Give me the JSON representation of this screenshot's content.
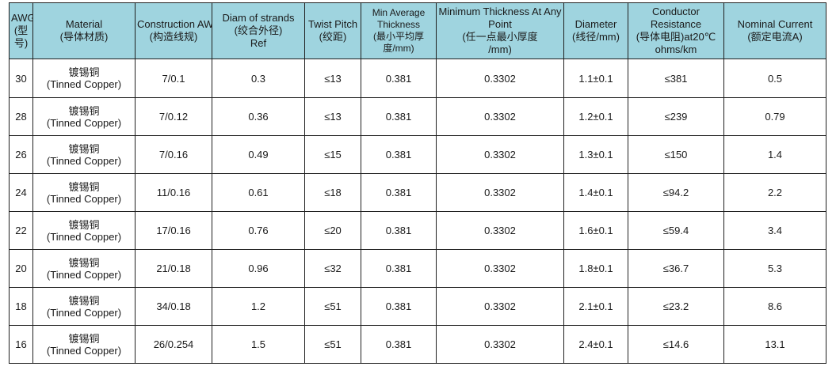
{
  "table": {
    "headers": [
      {
        "line1": "AWG",
        "line2": "(型号)",
        "line3": ""
      },
      {
        "line1": "Material",
        "line2": "(导体材质)",
        "line3": ""
      },
      {
        "line1": "Construction AWG",
        "line2": "(构造线规)",
        "line3": ""
      },
      {
        "line1": "Diam of strands",
        "line2": "(绞合外径)",
        "line3": "Ref"
      },
      {
        "line1": "Twist Pitch",
        "line2": "(绞距)",
        "line3": ""
      },
      {
        "line1": "Min Average Thickness",
        "line2": "(最小平均厚",
        "line3": "度/mm)"
      },
      {
        "line1": "Minimum Thickness At Any Point",
        "line2": "(任一点最小厚度",
        "line3": "/mm)"
      },
      {
        "line1": "Diameter",
        "line2": "(线径/mm)",
        "line3": ""
      },
      {
        "line1": "Conductor Resistance",
        "line2": "(导体电阻)at20℃",
        "line3": "ohms/km"
      },
      {
        "line1": "Nominal Current",
        "line2": "(额定电流A)",
        "line3": ""
      }
    ],
    "rows": [
      {
        "awg": "30",
        "material_cn": "镀锡铜",
        "material_en": "(Tinned Copper)",
        "construction": "7/0.1",
        "diam": "0.3",
        "pitch": "≤13",
        "min_avg": "0.381",
        "min_any": "0.3302",
        "diameter": "1.1±0.1",
        "resistance": "≤381",
        "current": "0.5"
      },
      {
        "awg": "28",
        "material_cn": "镀锡铜",
        "material_en": "(Tinned Copper)",
        "construction": "7/0.12",
        "diam": "0.36",
        "pitch": "≤13",
        "min_avg": "0.381",
        "min_any": "0.3302",
        "diameter": "1.2±0.1",
        "resistance": "≤239",
        "current": "0.79"
      },
      {
        "awg": "26",
        "material_cn": "镀锡铜",
        "material_en": "(Tinned Copper)",
        "construction": "7/0.16",
        "diam": "0.49",
        "pitch": "≤15",
        "min_avg": "0.381",
        "min_any": "0.3302",
        "diameter": "1.3±0.1",
        "resistance": "≤150",
        "current": "1.4"
      },
      {
        "awg": "24",
        "material_cn": "镀锡铜",
        "material_en": "(Tinned Copper)",
        "construction": "11/0.16",
        "diam": "0.61",
        "pitch": "≤18",
        "min_avg": "0.381",
        "min_any": "0.3302",
        "diameter": "1.4±0.1",
        "resistance": "≤94.2",
        "current": "2.2"
      },
      {
        "awg": "22",
        "material_cn": "镀锡铜",
        "material_en": "(Tinned Copper)",
        "construction": "17/0.16",
        "diam": "0.76",
        "pitch": "≤20",
        "min_avg": "0.381",
        "min_any": "0.3302",
        "diameter": "1.6±0.1",
        "resistance": "≤59.4",
        "current": "3.4"
      },
      {
        "awg": "20",
        "material_cn": "镀锡铜",
        "material_en": "(Tinned Copper)",
        "construction": "21/0.18",
        "diam": "0.96",
        "pitch": "≤32",
        "min_avg": "0.381",
        "min_any": "0.3302",
        "diameter": "1.8±0.1",
        "resistance": "≤36.7",
        "current": "5.3"
      },
      {
        "awg": "18",
        "material_cn": "镀锡铜",
        "material_en": "(Tinned Copper)",
        "construction": "34/0.18",
        "diam": "1.2",
        "pitch": "≤51",
        "min_avg": "0.381",
        "min_any": "0.3302",
        "diameter": "2.1±0.1",
        "resistance": "≤23.2",
        "current": "8.6"
      },
      {
        "awg": "16",
        "material_cn": "镀锡铜",
        "material_en": "(Tinned Copper)",
        "construction": "26/0.254",
        "diam": "1.5",
        "pitch": "≤51",
        "min_avg": "0.381",
        "min_any": "0.3302",
        "diameter": "2.4±0.1",
        "resistance": "≤14.6",
        "current": "13.1"
      }
    ]
  },
  "colors": {
    "header_background": "#9fd4df",
    "border": "#1f1f1f",
    "body_background": "#ffffff"
  }
}
